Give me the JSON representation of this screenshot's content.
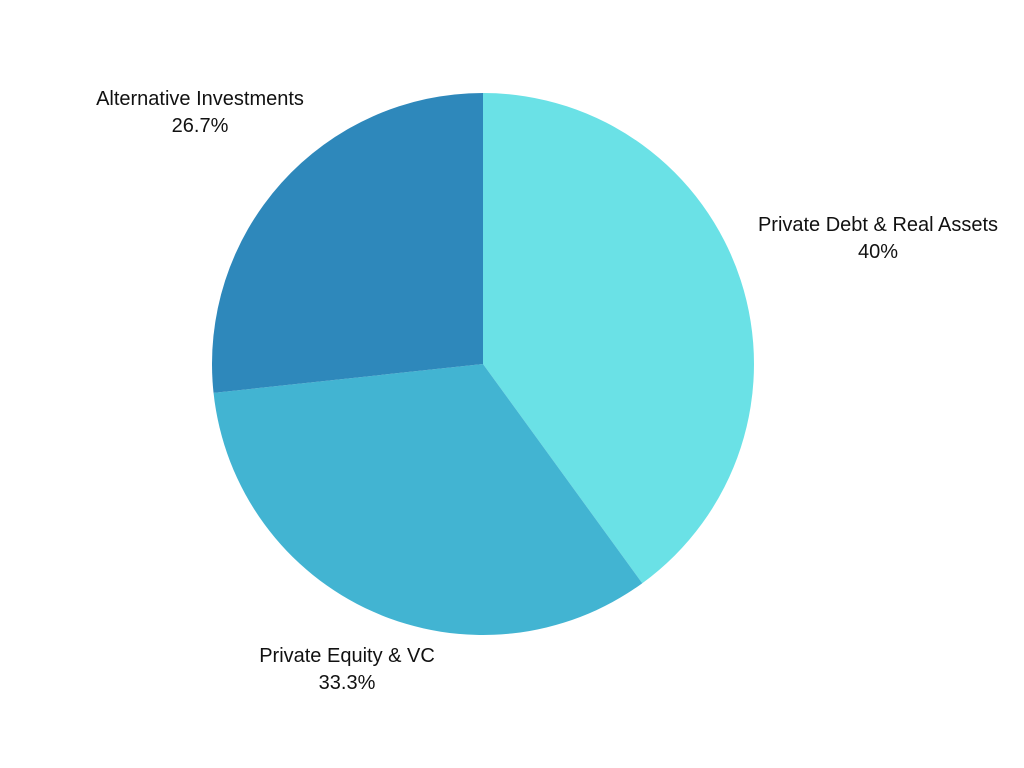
{
  "chart_data": {
    "type": "pie",
    "title": "",
    "start_angle_deg": 0,
    "direction": "clockwise",
    "legend": "none",
    "slices": [
      {
        "name": "Private Debt & Real Assets",
        "value": 40,
        "label": "40%",
        "color": "#6ae1e6"
      },
      {
        "name": "Private Equity & VC",
        "value": 33.3,
        "label": "33.3%",
        "color": "#42b4d2"
      },
      {
        "name": "Alternative Investments",
        "value": 26.7,
        "label": "26.7%",
        "color": "#2e88bb"
      }
    ]
  }
}
